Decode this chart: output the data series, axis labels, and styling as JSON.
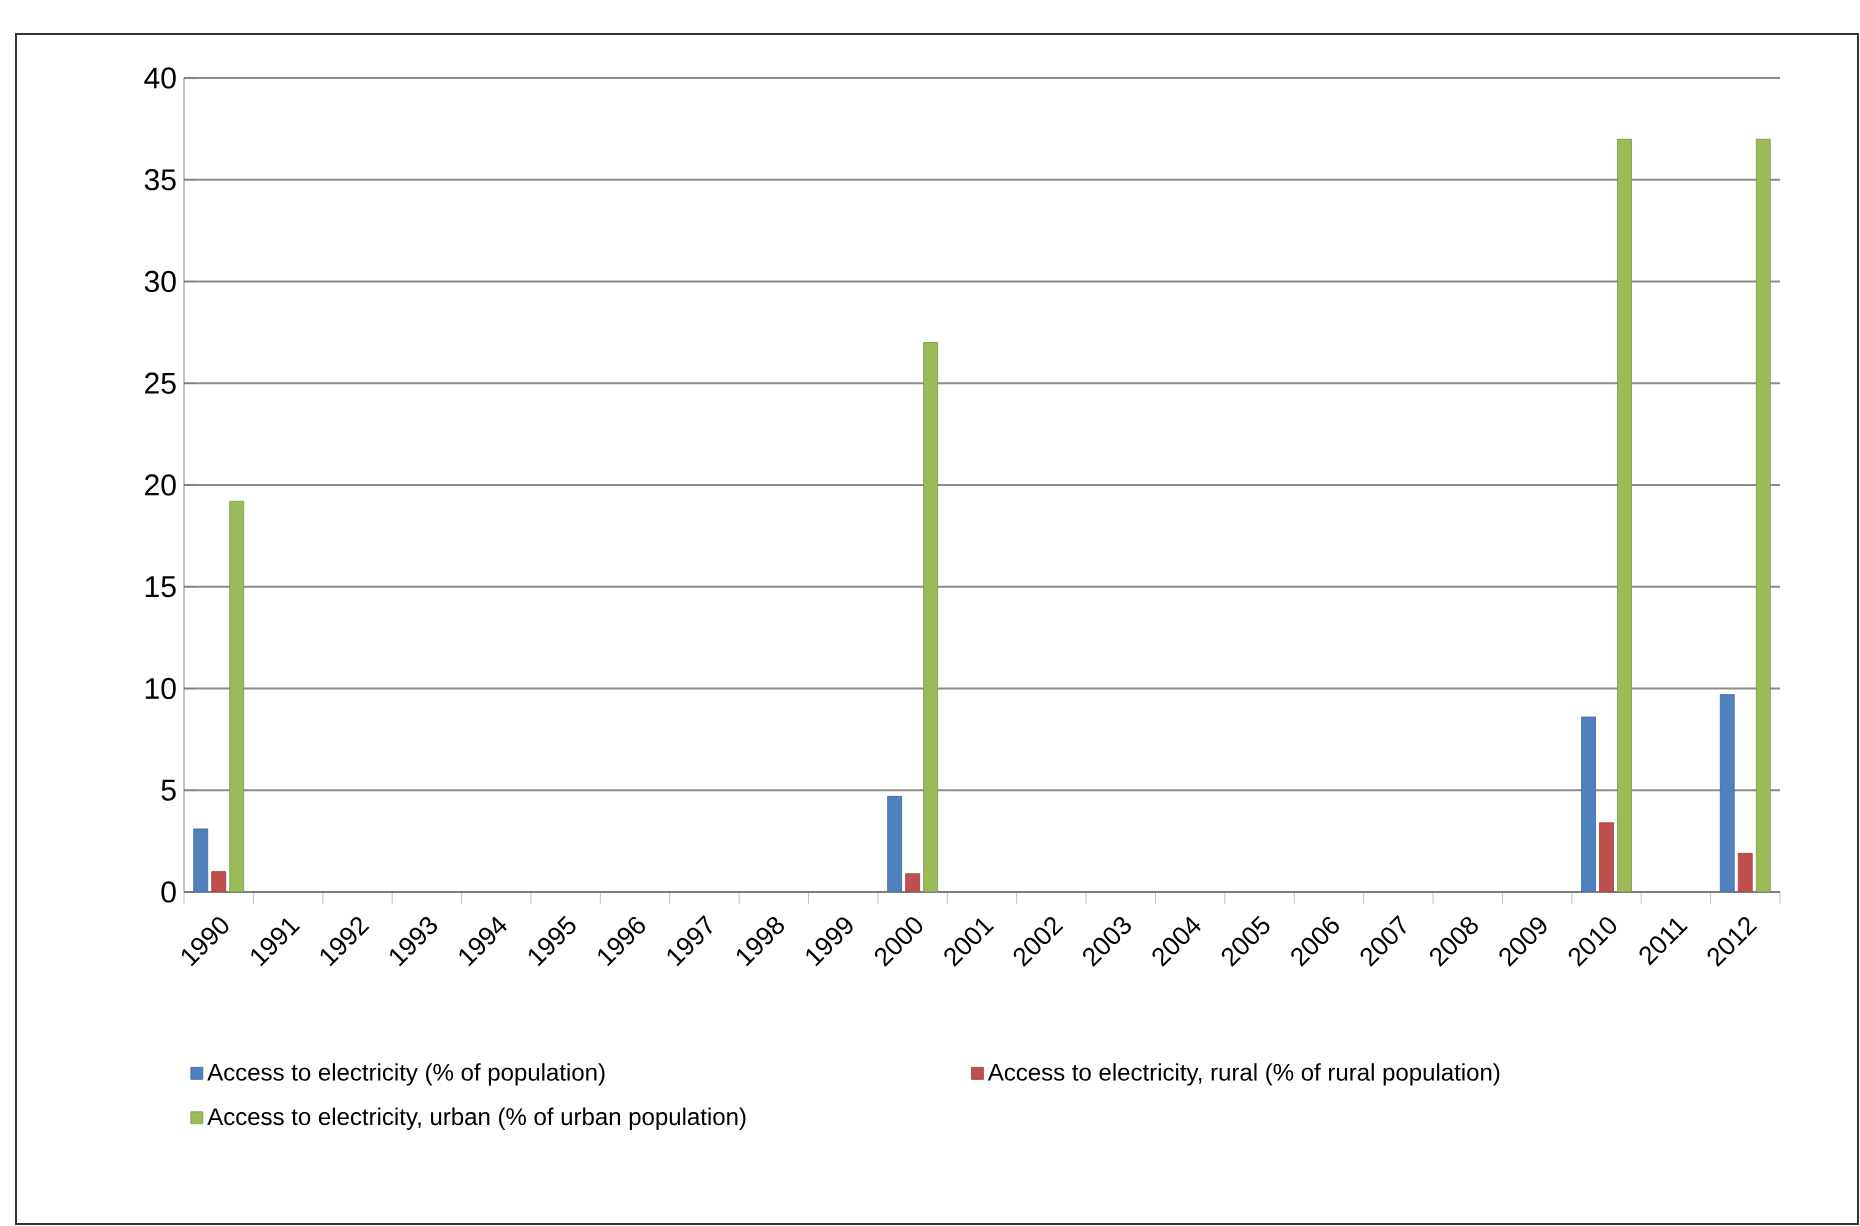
{
  "chart_data": {
    "type": "bar",
    "categories": [
      "1990",
      "1991",
      "1992",
      "1993",
      "1994",
      "1995",
      "1996",
      "1997",
      "1998",
      "1999",
      "2000",
      "2001",
      "2002",
      "2003",
      "2004",
      "2005",
      "2006",
      "2007",
      "2008",
      "2009",
      "2010",
      "2011",
      "2012"
    ],
    "series": [
      {
        "name": "Access to electricity (% of population)",
        "color": "#4f81bd",
        "values": [
          3.1,
          null,
          null,
          null,
          null,
          null,
          null,
          null,
          null,
          null,
          4.7,
          null,
          null,
          null,
          null,
          null,
          null,
          null,
          null,
          null,
          8.6,
          null,
          9.7
        ]
      },
      {
        "name": "Access to electricity, rural (% of rural population)",
        "color": "#c0504d",
        "values": [
          1.0,
          null,
          null,
          null,
          null,
          null,
          null,
          null,
          null,
          null,
          0.9,
          null,
          null,
          null,
          null,
          null,
          null,
          null,
          null,
          null,
          3.4,
          null,
          1.9
        ]
      },
      {
        "name": "Access to electricity, urban (% of urban population)",
        "color": "#9bbb59",
        "values": [
          19.2,
          null,
          null,
          null,
          null,
          null,
          null,
          null,
          null,
          null,
          27,
          null,
          null,
          null,
          null,
          null,
          null,
          null,
          null,
          null,
          37,
          null,
          37
        ]
      }
    ],
    "ylim": [
      0,
      40
    ],
    "yticks": [
      0,
      5,
      10,
      15,
      20,
      25,
      30,
      35,
      40
    ],
    "grid": "y",
    "legend": "bottom"
  }
}
